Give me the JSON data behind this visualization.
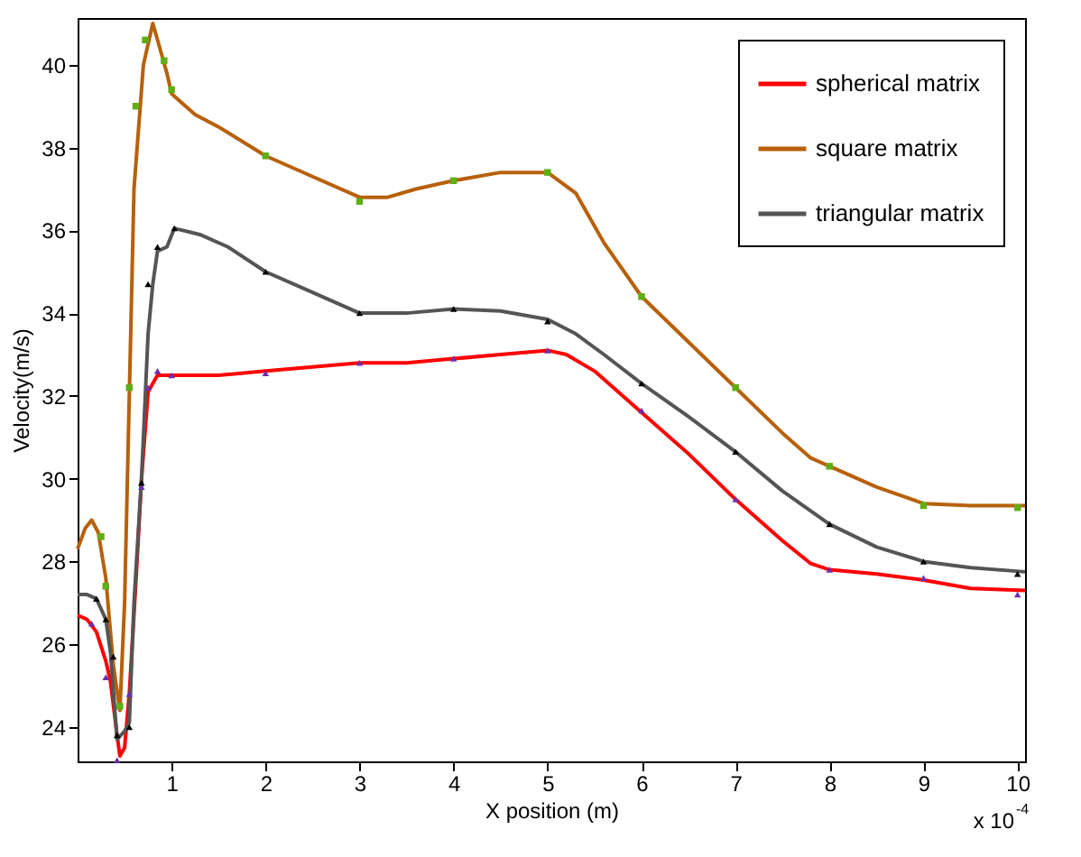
{
  "chart_data": {
    "type": "line",
    "xlabel": "X position (m)",
    "ylabel": "Velocity(m/s)",
    "xlim": [
      0,
      10.08
    ],
    "xticks": [
      1,
      2,
      3,
      4,
      5,
      6,
      7,
      8,
      9,
      10
    ],
    "ylim": [
      23.17,
      41.13
    ],
    "yticks": [
      24,
      26,
      28,
      30,
      32,
      34,
      36,
      38,
      40
    ],
    "grid": false,
    "legend": "top right",
    "line_style": "solid",
    "annotations": [
      "x 10$^{-4}$"
    ],
    "series": [
      {
        "name": "spherical matrix",
        "type": "line",
        "color": "#ff0000",
        "x": [
          0,
          0.1,
          0.2,
          0.3,
          0.35,
          0.42,
          0.45,
          0.5,
          0.55,
          0.62,
          0.68,
          0.75,
          0.85,
          1.0,
          1.5,
          2,
          2.5,
          3,
          3.5,
          4,
          4.5,
          5,
          5.2,
          5.5,
          6,
          6.5,
          7,
          7.5,
          7.8,
          8,
          8.5,
          9,
          9.5,
          10.08
        ],
        "values": [
          26.7,
          26.6,
          26.3,
          25.6,
          25.1,
          23.8,
          23.3,
          23.5,
          24.8,
          27.5,
          30.0,
          32.1,
          32.5,
          32.5,
          32.5,
          32.6,
          32.7,
          32.8,
          32.8,
          32.9,
          33.0,
          33.1,
          33.0,
          32.6,
          31.6,
          30.6,
          29.5,
          28.5,
          27.95,
          27.8,
          27.7,
          27.55,
          27.35,
          27.3
        ]
      },
      {
        "type": "scatter",
        "marker": "triangle",
        "color": "#6b2fb0",
        "x": [
          0.15,
          0.3,
          0.42,
          0.55,
          0.68,
          0.75,
          0.85,
          1.0,
          2,
          3,
          4,
          5,
          6,
          7,
          8,
          9,
          10
        ],
        "values": [
          26.5,
          25.2,
          23.2,
          24.8,
          29.8,
          32.2,
          32.6,
          32.5,
          32.55,
          32.8,
          32.9,
          33.1,
          31.65,
          29.5,
          27.8,
          27.6,
          27.2
        ]
      },
      {
        "name": "square matrix",
        "type": "line",
        "color": "#b8600b",
        "x": [
          0,
          0.08,
          0.15,
          0.22,
          0.3,
          0.38,
          0.45,
          0.5,
          0.55,
          0.6,
          0.7,
          0.8,
          0.85,
          0.95,
          1.0,
          1.25,
          1.5,
          2,
          2.5,
          3,
          3.3,
          3.6,
          4,
          4.5,
          5,
          5.3,
          5.6,
          6,
          6.5,
          7,
          7.5,
          7.8,
          8,
          8.5,
          9,
          9.5,
          10.08
        ],
        "values": [
          28.3,
          28.8,
          29.0,
          28.7,
          27.6,
          25.5,
          24.4,
          27.0,
          32.0,
          37.0,
          40.0,
          41.0,
          40.6,
          39.8,
          39.3,
          38.8,
          38.5,
          37.8,
          37.3,
          36.8,
          36.8,
          37.0,
          37.2,
          37.4,
          37.4,
          36.9,
          35.7,
          34.4,
          33.3,
          32.2,
          31.1,
          30.5,
          30.3,
          29.8,
          29.4,
          29.35,
          29.35
        ]
      },
      {
        "type": "scatter",
        "marker": "square",
        "color": "#5fae15",
        "x": [
          0.25,
          0.3,
          0.45,
          0.55,
          0.62,
          0.72,
          0.92,
          1.0,
          2,
          3,
          4,
          5,
          6,
          7,
          8,
          9,
          10
        ],
        "values": [
          28.6,
          27.4,
          24.5,
          32.2,
          39.0,
          40.6,
          40.1,
          39.4,
          37.8,
          36.7,
          37.2,
          37.4,
          34.4,
          32.2,
          30.3,
          29.35,
          29.3
        ]
      },
      {
        "name": "triangular matrix",
        "type": "line",
        "color": "#555555",
        "x": [
          0,
          0.1,
          0.2,
          0.3,
          0.35,
          0.42,
          0.5,
          0.55,
          0.6,
          0.68,
          0.75,
          0.8,
          0.85,
          0.95,
          1.03,
          1.3,
          1.6,
          2,
          2.5,
          3,
          3.5,
          4,
          4.5,
          5,
          5.3,
          5.6,
          6,
          6.5,
          7,
          7.5,
          8,
          8.5,
          9,
          9.5,
          10.08
        ],
        "values": [
          27.2,
          27.2,
          27.1,
          26.6,
          25.8,
          23.7,
          23.9,
          24.1,
          27.0,
          30.0,
          33.5,
          34.7,
          35.5,
          35.6,
          36.05,
          35.9,
          35.6,
          35.0,
          34.5,
          34.0,
          34.0,
          34.1,
          34.05,
          33.85,
          33.5,
          33.0,
          32.3,
          31.5,
          30.65,
          29.7,
          28.9,
          28.35,
          28.0,
          27.85,
          27.75
        ]
      },
      {
        "type": "scatter",
        "marker": "triangle",
        "color": "#000000",
        "x": [
          0.2,
          0.3,
          0.38,
          0.42,
          0.55,
          0.68,
          0.75,
          0.85,
          1.03,
          2,
          3,
          4,
          5,
          6,
          7,
          8,
          9,
          10
        ],
        "values": [
          27.1,
          26.6,
          25.7,
          23.8,
          24.0,
          29.9,
          34.7,
          35.6,
          36.05,
          35.0,
          34.0,
          34.1,
          33.8,
          32.3,
          30.65,
          28.9,
          28.0,
          27.7
        ]
      }
    ]
  }
}
